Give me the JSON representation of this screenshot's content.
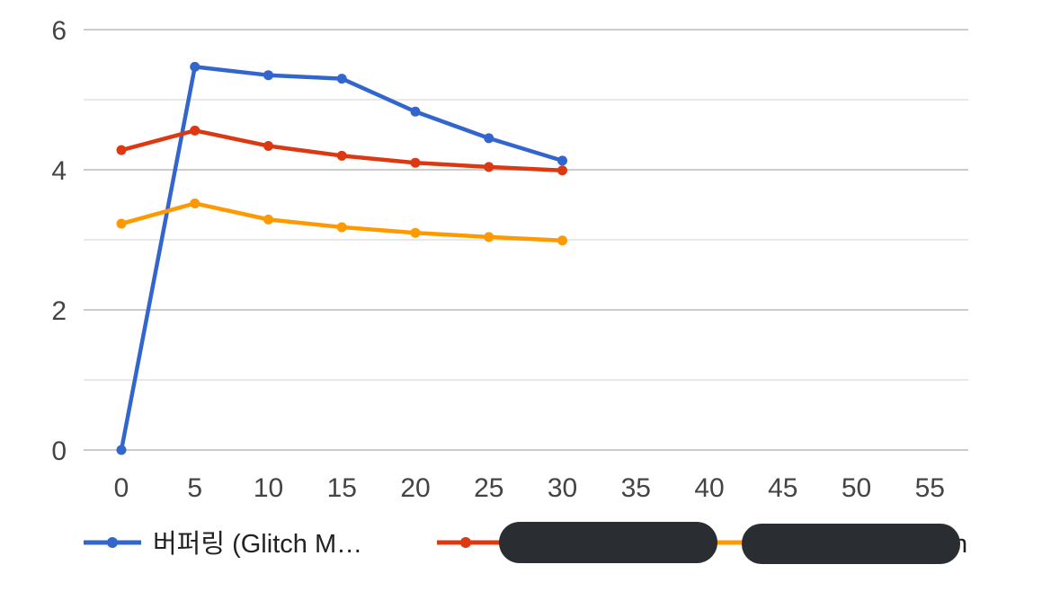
{
  "chart_data": {
    "type": "line",
    "title": "",
    "xlabel": "",
    "ylabel": "",
    "x": [
      0,
      5,
      10,
      15,
      20,
      25,
      30
    ],
    "xlim": [
      0,
      57
    ],
    "ylim": [
      0,
      6
    ],
    "x_ticks": [
      0,
      5,
      10,
      15,
      20,
      25,
      30,
      35,
      40,
      45,
      50,
      55
    ],
    "y_ticks": [
      0,
      2,
      4,
      6
    ],
    "y_minor_ticks": [
      1,
      3,
      5
    ],
    "grid": true,
    "legend_position": "bottom",
    "series": [
      {
        "name": "버퍼링 (Glitch M…",
        "color": "#3366cc",
        "values": [
          0,
          5.47,
          5.35,
          5.3,
          4.83,
          4.45,
          4.13
        ]
      },
      {
        "name": "",
        "color": "#dc3912",
        "values": [
          4.28,
          4.56,
          4.34,
          4.2,
          4.1,
          4.04,
          3.99
        ]
      },
      {
        "name": "",
        "color": "#ff9900",
        "values": [
          3.23,
          3.52,
          3.29,
          3.18,
          3.1,
          3.04,
          2.99
        ]
      }
    ],
    "legend_trailing_fragment": "n"
  }
}
